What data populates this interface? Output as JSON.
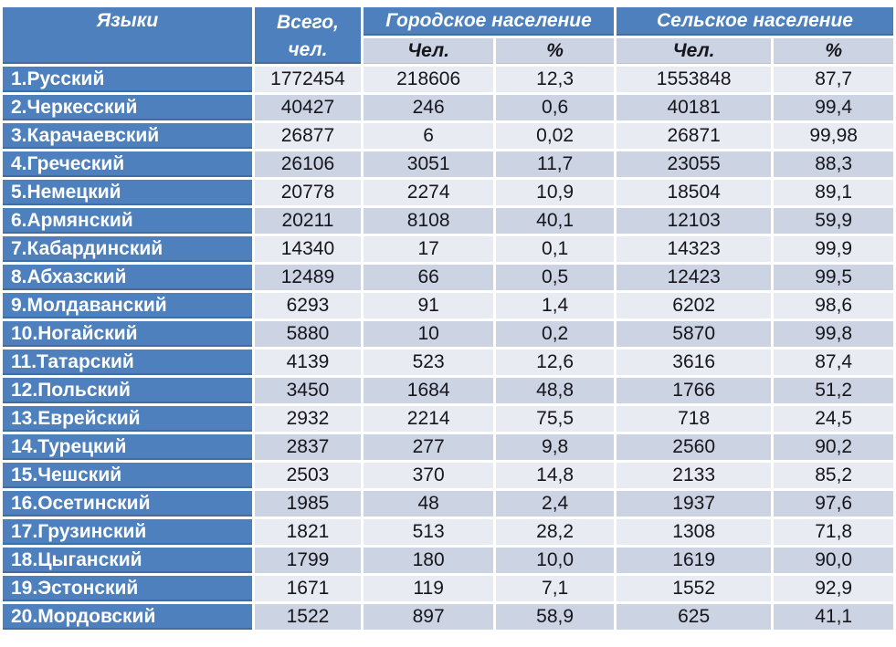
{
  "header": {
    "languages": "Языки",
    "total": "Всего, чел.",
    "urban": "Городское население",
    "rural": "Сельское население",
    "people": "Чел.",
    "percent": "%"
  },
  "colors": {
    "header_blue": "#4d80bc",
    "band_light": "#e9ebf3",
    "band_dark": "#ccd3e3",
    "grid_white": "#ffffff",
    "header_text": "#ffffff",
    "cell_text": "#16161c"
  },
  "chart_data": {
    "type": "table",
    "title": "",
    "columns": [
      "Языки",
      "Всего, чел.",
      "Городское население — Чел.",
      "Городское население — %",
      "Сельское население — Чел.",
      "Сельское население — %"
    ],
    "rows": [
      [
        "1.Русский",
        "1772454",
        "218606",
        "12,3",
        "1553848",
        "87,7"
      ],
      [
        "2.Черкесский",
        "40427",
        "246",
        "0,6",
        "40181",
        "99,4"
      ],
      [
        "3.Карачаевский",
        "26877",
        "6",
        "0,02",
        "26871",
        "99,98"
      ],
      [
        "4.Греческий",
        "26106",
        "3051",
        "11,7",
        "23055",
        "88,3"
      ],
      [
        "5.Немецкий",
        "20778",
        "2274",
        "10,9",
        "18504",
        "89,1"
      ],
      [
        "6.Армянский",
        "20211",
        "8108",
        "40,1",
        "12103",
        "59,9"
      ],
      [
        "7.Кабардинский",
        "14340",
        "17",
        "0,1",
        "14323",
        "99,9"
      ],
      [
        "8.Абхазский",
        "12489",
        "66",
        "0,5",
        "12423",
        "99,5"
      ],
      [
        "9.Молдаванский",
        "6293",
        "91",
        "1,4",
        "6202",
        "98,6"
      ],
      [
        "10.Ногайский",
        "5880",
        "10",
        "0,2",
        "5870",
        "99,8"
      ],
      [
        "11.Татарский",
        "4139",
        "523",
        "12,6",
        "3616",
        "87,4"
      ],
      [
        "12.Польский",
        "3450",
        "1684",
        "48,8",
        "1766",
        "51,2"
      ],
      [
        "13.Еврейский",
        "2932",
        "2214",
        "75,5",
        "718",
        "24,5"
      ],
      [
        "14.Турецкий",
        "2837",
        "277",
        "9,8",
        "2560",
        "90,2"
      ],
      [
        "15.Чешский",
        "2503",
        "370",
        "14,8",
        "2133",
        "85,2"
      ],
      [
        "16.Осетинский",
        "1985",
        "48",
        "2,4",
        "1937",
        "97,6"
      ],
      [
        "17.Грузинский",
        "1821",
        "513",
        "28,2",
        "1308",
        "71,8"
      ],
      [
        "18.Цыганский",
        "1799",
        "180",
        "10,0",
        "1619",
        "90,0"
      ],
      [
        "19.Эстонский",
        "1671",
        "119",
        "7,1",
        "1552",
        "92,9"
      ],
      [
        "20.Мордовский",
        "1522",
        "897",
        "58,9",
        "625",
        "41,1"
      ]
    ]
  }
}
